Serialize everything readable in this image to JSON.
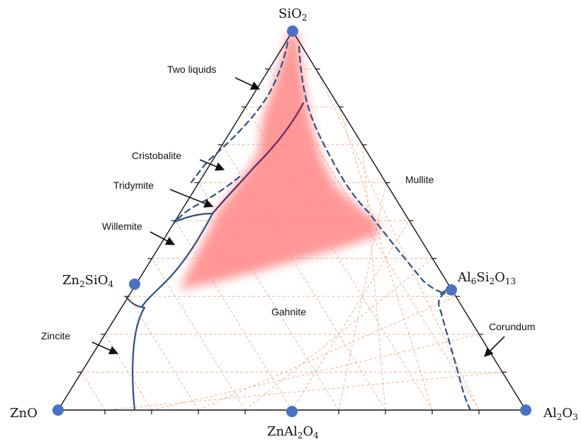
{
  "vertices": {
    "top": {
      "text": "SiO",
      "sub1": "2"
    },
    "left": {
      "text": "ZnO"
    },
    "right": {
      "text": "Al",
      "sub1": "2",
      "mid": "O",
      "sub2": "3"
    }
  },
  "compounds": {
    "zn2sio4": {
      "a": "Zn",
      "s1": "2",
      "b": "SiO",
      "s2": "4"
    },
    "znal2o4": {
      "a": "ZnAl",
      "s1": "2",
      "b": "O",
      "s2": "4"
    },
    "al6si2o13": {
      "a": "Al",
      "s1": "6",
      "b": "Si",
      "s2": "2",
      "c": "O",
      "s3": "13"
    }
  },
  "phase_labels": {
    "two_liquids": "Two liquids",
    "cristobalite": "Cristobalite",
    "tridymite": "Tridymite",
    "willemite": "Willemite",
    "zincite": "Zincite",
    "gahnite": "Gahnite",
    "mullite": "Mullite",
    "corundum": "Corundum"
  },
  "colors": {
    "point": "#4a72c4",
    "boundary": "#2d4f86",
    "eutectic_valley": "#6a2f63",
    "highlight_region": "#ff8080",
    "grid": "#f2b592"
  }
}
